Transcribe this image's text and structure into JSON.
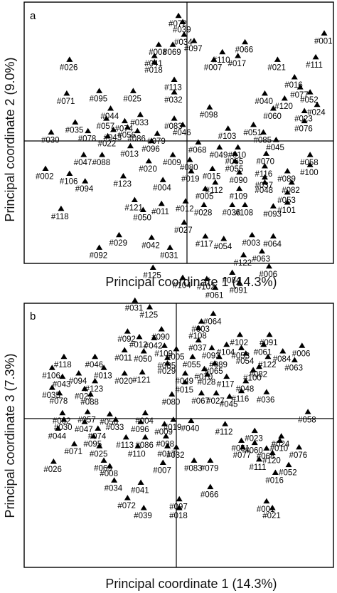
{
  "chart_data": [
    {
      "type": "scatter",
      "panel_label": "a",
      "xlabel": "Principal coordinate 1 (14.3%)",
      "ylabel": "Principal coordinate 2 (9.0%)",
      "points": [
        [
          "#072",
          -0.06,
          0.99
        ],
        [
          "#039",
          -0.03,
          0.94
        ],
        [
          "#034",
          -0.02,
          0.84
        ],
        [
          "#008",
          -0.2,
          0.76
        ],
        [
          "#069",
          -0.1,
          0.76
        ],
        [
          "#097",
          0.05,
          0.79
        ],
        [
          "#066",
          0.41,
          0.78
        ],
        [
          "#001",
          0.97,
          0.85
        ],
        [
          "#110",
          0.25,
          0.7
        ],
        [
          "#007",
          0.19,
          0.64
        ],
        [
          "#017",
          0.36,
          0.67
        ],
        [
          "#021",
          0.64,
          0.64
        ],
        [
          "#111",
          0.91,
          0.66
        ],
        [
          "#026",
          -0.83,
          0.64
        ],
        [
          "#041",
          -0.23,
          0.67
        ],
        [
          "#018",
          -0.23,
          0.62
        ],
        [
          "#113",
          -0.09,
          0.48
        ],
        [
          "#016",
          0.76,
          0.5
        ],
        [
          "#077",
          0.8,
          0.42
        ],
        [
          "#052",
          0.87,
          0.38
        ],
        [
          "#040",
          0.55,
          0.37
        ],
        [
          "#120",
          0.69,
          0.33
        ],
        [
          "#024",
          0.92,
          0.28
        ],
        [
          "#060",
          0.61,
          0.25
        ],
        [
          "#023",
          0.83,
          0.23
        ],
        [
          "#076",
          0.83,
          0.15
        ],
        [
          "#098",
          0.16,
          0.26
        ],
        [
          "#071",
          -0.85,
          0.37
        ],
        [
          "#095",
          -0.62,
          0.39
        ],
        [
          "#025",
          -0.38,
          0.39
        ],
        [
          "#032",
          -0.09,
          0.38
        ],
        [
          "#044",
          -0.54,
          0.25
        ],
        [
          "#033",
          -0.33,
          0.2
        ],
        [
          "#057",
          -0.57,
          0.17
        ],
        [
          "#074",
          -0.44,
          0.15
        ],
        [
          "#083",
          -0.09,
          0.17
        ],
        [
          "#046",
          -0.03,
          0.12
        ],
        [
          "#035",
          -0.79,
          0.14
        ],
        [
          "#078",
          -0.7,
          0.07
        ],
        [
          "#043",
          -0.52,
          0.08
        ],
        [
          "#056",
          -0.42,
          0.1
        ],
        [
          "#086",
          -0.35,
          0.07
        ],
        [
          "#079",
          -0.21,
          0.05
        ],
        [
          "#030",
          -0.96,
          0.06
        ],
        [
          "#022",
          -0.56,
          0.03
        ],
        [
          "#051",
          0.47,
          0.12
        ],
        [
          "#103",
          0.29,
          0.09
        ],
        [
          "#085",
          0.54,
          0.06
        ],
        [
          "#045",
          0.63,
          0.0
        ],
        [
          "#068",
          0.08,
          -0.02
        ],
        [
          "#049",
          0.23,
          -0.06
        ],
        [
          "#010",
          0.36,
          -0.06
        ],
        [
          "#013",
          -0.4,
          -0.05
        ],
        [
          "#096",
          -0.25,
          -0.01
        ],
        [
          "#047",
          -0.73,
          -0.12
        ],
        [
          "#088",
          -0.6,
          -0.12
        ],
        [
          "#009",
          -0.1,
          -0.12
        ],
        [
          "#080",
          0.02,
          -0.16
        ],
        [
          "#065",
          0.34,
          -0.11
        ],
        [
          "#070",
          0.56,
          -0.11
        ],
        [
          "#058",
          0.87,
          -0.12
        ],
        [
          "#020",
          -0.27,
          -0.17
        ],
        [
          "#019",
          0.03,
          -0.25
        ],
        [
          "#015",
          0.18,
          -0.23
        ],
        [
          "#055",
          0.34,
          -0.17
        ],
        [
          "#116",
          0.55,
          -0.21
        ],
        [
          "#100",
          0.87,
          -0.2
        ],
        [
          "#002",
          -1.0,
          -0.23
        ],
        [
          "#106",
          -0.83,
          -0.27
        ],
        [
          "#094",
          -0.72,
          -0.33
        ],
        [
          "#123",
          -0.45,
          -0.29
        ],
        [
          "#004",
          -0.17,
          -0.32
        ],
        [
          "#090",
          0.37,
          -0.26
        ],
        [
          "#089",
          0.71,
          -0.25
        ],
        [
          "#037",
          0.55,
          -0.3
        ],
        [
          "#048",
          0.55,
          -0.34
        ],
        [
          "#112",
          0.2,
          -0.34
        ],
        [
          "#082",
          0.74,
          -0.34
        ],
        [
          "#005",
          0.13,
          -0.39
        ],
        [
          "#109",
          0.37,
          -0.39
        ],
        [
          "#053",
          0.71,
          -0.42
        ],
        [
          "#118",
          -0.89,
          -0.55
        ],
        [
          "#121",
          -0.37,
          -0.48
        ],
        [
          "#011",
          -0.18,
          -0.51
        ],
        [
          "#012",
          -0.01,
          -0.49
        ],
        [
          "#028",
          0.12,
          -0.52
        ],
        [
          "#036",
          0.32,
          -0.52
        ],
        [
          "#108",
          0.41,
          -0.52
        ],
        [
          "#093",
          0.61,
          -0.53
        ],
        [
          "#101",
          0.71,
          -0.5
        ],
        [
          "#050",
          -0.31,
          -0.56
        ],
        [
          "#027",
          -0.02,
          -0.66
        ],
        [
          "#029",
          -0.48,
          -0.76
        ],
        [
          "#042",
          -0.25,
          -0.78
        ],
        [
          "#064",
          0.61,
          -0.77
        ],
        [
          "#003",
          0.46,
          -0.76
        ],
        [
          "#117",
          0.13,
          -0.77
        ],
        [
          "#054",
          0.26,
          -0.79
        ],
        [
          "#092",
          -0.62,
          -0.86
        ],
        [
          "#031",
          -0.12,
          -0.86
        ],
        [
          "#063",
          0.53,
          -0.89
        ],
        [
          "#122",
          0.4,
          -0.92
        ],
        [
          "#125",
          -0.24,
          -1.02
        ],
        [
          "#006",
          0.58,
          -1.01
        ],
        [
          "#084",
          0.32,
          -1.06
        ],
        [
          "#104",
          -0.03,
          -1.1
        ],
        [
          "#102",
          0.14,
          -1.11
        ],
        [
          "#091",
          0.37,
          -1.14
        ],
        [
          "#061",
          0.2,
          -1.18
        ]
      ]
    },
    {
      "type": "scatter",
      "panel_label": "b",
      "xlabel": "Principal coordinate 1 (14.3%)",
      "ylabel": "Principal coordinate 3 (7.3%)",
      "points": [
        [
          "#031",
          -0.28,
          1.06
        ],
        [
          "#125",
          -0.18,
          1.0
        ],
        [
          "#064",
          0.25,
          0.94
        ],
        [
          "#003",
          0.17,
          0.87
        ],
        [
          "#108",
          0.15,
          0.81
        ],
        [
          "#092",
          -0.33,
          0.78
        ],
        [
          "#090",
          -0.1,
          0.8
        ],
        [
          "#102",
          0.43,
          0.75
        ],
        [
          "#091",
          0.63,
          0.75
        ],
        [
          "#012",
          -0.25,
          0.73
        ],
        [
          "#042",
          -0.15,
          0.72
        ],
        [
          "#037",
          0.15,
          0.7
        ],
        [
          "#109",
          -0.08,
          0.65
        ],
        [
          "#104",
          0.34,
          0.66
        ],
        [
          "#061",
          0.59,
          0.66
        ],
        [
          "#006",
          0.85,
          0.65
        ],
        [
          "#084",
          0.72,
          0.6
        ],
        [
          "#063",
          0.8,
          0.52
        ],
        [
          "#011",
          -0.35,
          0.61
        ],
        [
          "#050",
          -0.22,
          0.6
        ],
        [
          "#005",
          0.0,
          0.62
        ],
        [
          "#093",
          0.24,
          0.63
        ],
        [
          "#053",
          0.44,
          0.63
        ],
        [
          "#054",
          0.47,
          0.58
        ],
        [
          "#089",
          0.29,
          0.55
        ],
        [
          "#122",
          0.62,
          0.55
        ],
        [
          "#046",
          -0.55,
          0.55
        ],
        [
          "#118",
          -0.76,
          0.55
        ],
        [
          "#055",
          0.11,
          0.55
        ],
        [
          "#082",
          0.56,
          0.46
        ],
        [
          "#100",
          0.52,
          0.43
        ],
        [
          "#085",
          -0.06,
          0.54
        ],
        [
          "#029",
          -0.06,
          0.49
        ],
        [
          "#065",
          0.26,
          0.49
        ],
        [
          "#070",
          0.19,
          0.44
        ],
        [
          "#028",
          0.21,
          0.39
        ],
        [
          "#121",
          -0.23,
          0.41
        ],
        [
          "#049",
          0.06,
          0.4
        ],
        [
          "#013",
          -0.49,
          0.45
        ],
        [
          "#106",
          -0.84,
          0.45
        ],
        [
          "#094",
          -0.66,
          0.4
        ],
        [
          "#020",
          -0.35,
          0.4
        ],
        [
          "#117",
          0.34,
          0.37
        ],
        [
          "#048",
          0.47,
          0.33
        ],
        [
          "#015",
          0.06,
          0.32
        ],
        [
          "#043",
          -0.77,
          0.37
        ],
        [
          "#123",
          -0.55,
          0.33
        ],
        [
          "#116",
          0.44,
          0.24
        ],
        [
          "#036",
          0.61,
          0.23
        ],
        [
          "#067",
          0.17,
          0.22
        ],
        [
          "#027",
          0.27,
          0.22
        ],
        [
          "#045",
          0.36,
          0.19
        ],
        [
          "#035",
          -0.84,
          0.27
        ],
        [
          "#022",
          -0.62,
          0.26
        ],
        [
          "#078",
          -0.79,
          0.22
        ],
        [
          "#088",
          -0.58,
          0.21
        ],
        [
          "#080",
          -0.03,
          0.21
        ],
        [
          "#058",
          0.89,
          0.05
        ],
        [
          "#002",
          -0.77,
          0.04
        ],
        [
          "#057",
          -0.6,
          0.05
        ],
        [
          "#056",
          -0.45,
          0.03
        ],
        [
          "#004",
          -0.21,
          0.04
        ],
        [
          "#030",
          -0.76,
          -0.02
        ],
        [
          "#047",
          -0.62,
          -0.04
        ],
        [
          "#033",
          -0.41,
          -0.02
        ],
        [
          "#096",
          -0.24,
          -0.04
        ],
        [
          "#009",
          -0.08,
          -0.06
        ],
        [
          "#019",
          -0.02,
          -0.02
        ],
        [
          "#040",
          0.1,
          -0.03
        ],
        [
          "#112",
          0.33,
          -0.06
        ],
        [
          "#044",
          -0.8,
          -0.1
        ],
        [
          "#074",
          -0.53,
          -0.1
        ],
        [
          "#095",
          -0.56,
          -0.17
        ],
        [
          "#113",
          -0.34,
          -0.18
        ],
        [
          "#086",
          -0.21,
          -0.18
        ],
        [
          "#098",
          -0.07,
          -0.17
        ],
        [
          "#023",
          0.53,
          -0.12
        ],
        [
          "#024",
          0.71,
          -0.17
        ],
        [
          "#051",
          0.44,
          -0.21
        ],
        [
          "#010",
          0.7,
          -0.21
        ],
        [
          "#071",
          -0.69,
          -0.24
        ],
        [
          "#025",
          -0.52,
          -0.26
        ],
        [
          "#110",
          -0.26,
          -0.26
        ],
        [
          "#017",
          -0.06,
          -0.26
        ],
        [
          "#032",
          0.0,
          -0.27
        ],
        [
          "#060",
          0.53,
          -0.23
        ],
        [
          "#077",
          0.45,
          -0.27
        ],
        [
          "#068",
          0.61,
          -0.28
        ],
        [
          "#076",
          0.83,
          -0.27
        ],
        [
          "#120",
          0.65,
          -0.32
        ],
        [
          "#111",
          0.56,
          -0.38
        ],
        [
          "#026",
          -0.83,
          -0.4
        ],
        [
          "#069",
          -0.49,
          -0.39
        ],
        [
          "#008",
          -0.45,
          -0.44
        ],
        [
          "#007",
          -0.09,
          -0.41
        ],
        [
          "#083",
          0.12,
          -0.39
        ],
        [
          "#079",
          0.23,
          -0.39
        ],
        [
          "#052",
          0.76,
          -0.43
        ],
        [
          "#016",
          0.67,
          -0.5
        ],
        [
          "#034",
          -0.42,
          -0.57
        ],
        [
          "#041",
          -0.24,
          -0.59
        ],
        [
          "#066",
          0.23,
          -0.63
        ],
        [
          "#072",
          -0.33,
          -0.73
        ],
        [
          "#039",
          -0.22,
          -0.82
        ],
        [
          "#097",
          0.02,
          -0.74
        ],
        [
          "#018",
          0.02,
          -0.82
        ],
        [
          "#001",
          0.61,
          -0.76
        ],
        [
          "#021",
          0.65,
          -0.82
        ]
      ]
    }
  ]
}
